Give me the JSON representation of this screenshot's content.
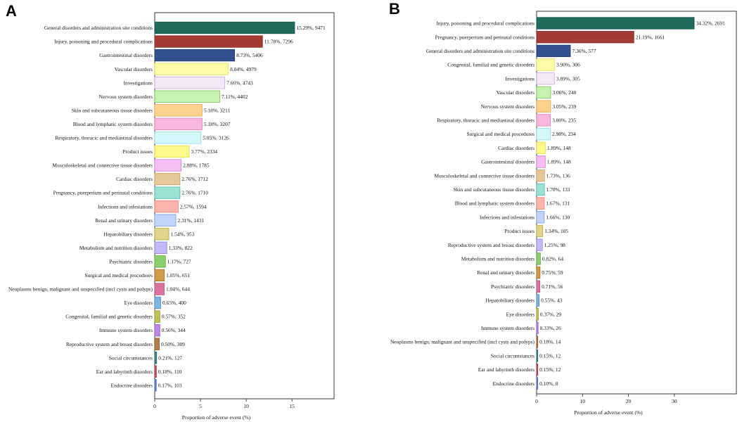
{
  "chart_data": [
    {
      "panel": "A",
      "type": "bar",
      "orientation": "horizontal",
      "xlabel": "Proportion of adverse event (%)",
      "xticks": [
        "0",
        "5",
        "10",
        "15"
      ],
      "xlim": [
        0,
        19.6
      ],
      "categories": [
        "General disorders and administration site conditions",
        "Injury, poisoning and procedural complications",
        "Gastrointestinal disorders",
        "Vascular disorders",
        "Investigations",
        "Nervous system disorders",
        "Skin and subcutaneous tissue disorders",
        "Blood and lymphatic system disorders",
        "Respiratory, thoracic and mediastinal disorders",
        "Product issues",
        "Musculoskeletal and connective tissue disorders",
        "Cardiac disorders",
        "Pregnancy, puerperium and perinatal conditions",
        "Infections and infestations",
        "Renal and urinary disorders",
        "Hepatobiliary disorders",
        "Metabolism and nutrition disorders",
        "Psychiatric disorders",
        "Surgical and medical procedures",
        "Neoplasms benign, malignant and unspecified (incl cysts and polyps)",
        "Eye disorders",
        "Congenital, familial and genetic disorders",
        "Immune system disorders",
        "Reproductive system and breast disorders",
        "Social circumstances",
        "Ear and labyrinth disorders",
        "Endocrine disorders"
      ],
      "values": [
        15.29,
        11.78,
        8.73,
        8.04,
        7.66,
        7.11,
        5.18,
        5.18,
        5.05,
        3.77,
        2.88,
        2.76,
        2.76,
        2.57,
        2.31,
        1.54,
        1.33,
        1.17,
        1.05,
        1.04,
        0.65,
        0.57,
        0.56,
        0.5,
        0.21,
        0.18,
        0.17
      ],
      "labels": [
        "15.29%, 9471",
        "11.78%, 7296",
        "8.73%, 5406",
        "8.04%, 4979",
        "7.66%, 4743",
        "7.11%, 4402",
        "5.18%, 3211",
        "5.18%, 3207",
        "5.05%, 3126",
        "3.77%, 2334",
        "2.88%, 1785",
        "2.76%, 1712",
        "2.76%, 1710",
        "2.57%, 1594",
        "2.31%, 1431",
        "1.54%, 953",
        "1.33%, 822",
        "1.17%, 727",
        "1.05%, 651",
        "1.04%, 644",
        "0.65%, 400",
        "0.57%, 352",
        "0.56%, 344",
        "0.50%, 309",
        "0.21%, 127",
        "0.18%, 110",
        "0.17%, 103"
      ],
      "colors": [
        "#1f6b5e",
        "#a33b33",
        "#33508f",
        "#fdfaa8",
        "#f5e8f8",
        "#c6f3ad",
        "#fdd28f",
        "#f8b7de",
        "#d4f9fb",
        "#fdf88a",
        "#f6bef5",
        "#e6c79a",
        "#9be2d5",
        "#fbb5ab",
        "#c3d4fb",
        "#e0d58a",
        "#c3baf5",
        "#8ccf6d",
        "#d39a4a",
        "#d9759c",
        "#7fb6e3",
        "#c0bf59",
        "#bb8ae3",
        "#b07d47",
        "#3f8a87",
        "#c7545a",
        "#6b83d4"
      ],
      "edge_colors": [
        "#16524a",
        "#7e2c26",
        "#23396b",
        "#e8df54",
        "#c9a9d9",
        "#7bc25a",
        "#e7a544",
        "#e080b5",
        "#8fd8e2",
        "#e7dc3f",
        "#d07fd0",
        "#c99d63",
        "#54b7a6",
        "#e47d6e",
        "#7f9be0",
        "#b8a83f",
        "#8f82d8",
        "#5aa43e",
        "#a36f24",
        "#b34c78",
        "#4a86bf",
        "#999827",
        "#8d58bf",
        "#82552a",
        "#2a6462",
        "#9a3238",
        "#4a5fb0"
      ]
    },
    {
      "panel": "B",
      "type": "bar",
      "orientation": "horizontal",
      "xlabel": "Proportion of adverse event (%)",
      "xticks": [
        "0",
        "10",
        "20",
        "30"
      ],
      "xlim": [
        0,
        43.5
      ],
      "categories": [
        "Injury, poisoning and procedural complications",
        "Pregnancy, puerperium and perinatal conditions",
        "General disorders and administration site conditions",
        "Congenital, familial and genetic disorders",
        "Investigations",
        "Vascular disorders",
        "Nervous system disorders",
        "Respiratory, thoracic and mediastinal disorders",
        "Surgical and medical procedures",
        "Cardiac disorders",
        "Gastrointestinal disorders",
        "Musculoskeletal and connective tissue disorders",
        "Skin and subcutaneous tissue disorders",
        "Blood and lymphatic system disorders",
        "Infections and infestations",
        "Product issues",
        "Reproductive system and breast disorders",
        "Metabolism and nutrition disorders",
        "Renal and urinary disorders",
        "Psychiatric disorders",
        "Hepatobiliary disorders",
        "Eye disorders",
        "Immune system disorders",
        "Neoplasms benign, malignant and unspecified (incl cysts and polyps)",
        "Social circumstances",
        "Ear and labyrinth disorders",
        "Endocrine disorders"
      ],
      "values": [
        34.32,
        21.19,
        7.36,
        3.9,
        3.89,
        3.06,
        3.05,
        3.0,
        2.98,
        1.89,
        1.89,
        1.73,
        1.7,
        1.67,
        1.66,
        1.34,
        1.25,
        0.82,
        0.75,
        0.71,
        0.55,
        0.37,
        0.33,
        0.18,
        0.15,
        0.15,
        0.1
      ],
      "labels": [
        "34.32%, 2691",
        "21.19%, 1661",
        "7.36%, 577",
        "3.90%, 306",
        "3.89%, 305",
        "3.06%, 240",
        "3.05%, 239",
        "3.00%, 235",
        "2.98%, 234",
        "1.89%, 148",
        "1.89%, 148",
        "1.73%, 136",
        "1.70%, 133",
        "1.67%, 131",
        "1.66%, 130",
        "1.34%, 105",
        "1.25%, 98",
        "0.82%, 64",
        "0.75%, 59",
        "0.71%, 56",
        "0.55%, 43",
        "0.37%, 29",
        "0.33%, 26",
        "0.18%, 14",
        "0.15%, 12",
        "0.15%, 12",
        "0.10%, 8"
      ],
      "colors": [
        "#1f6b5e",
        "#a33b33",
        "#33508f",
        "#fdfaa8",
        "#f5e8f8",
        "#c6f3ad",
        "#fdd28f",
        "#f8b7de",
        "#d4f9fb",
        "#fdf88a",
        "#f6bef5",
        "#e6c79a",
        "#9be2d5",
        "#fbb5ab",
        "#c3d4fb",
        "#e0d58a",
        "#c3baf5",
        "#8ccf6d",
        "#d39a4a",
        "#d9759c",
        "#7fb6e3",
        "#c0bf59",
        "#bb8ae3",
        "#b07d47",
        "#3f8a87",
        "#c7545a",
        "#6b83d4"
      ],
      "edge_colors": [
        "#16524a",
        "#7e2c26",
        "#23396b",
        "#e8df54",
        "#c9a9d9",
        "#7bc25a",
        "#e7a544",
        "#e080b5",
        "#8fd8e2",
        "#e7dc3f",
        "#d07fd0",
        "#c99d63",
        "#54b7a6",
        "#e47d6e",
        "#7f9be0",
        "#b8a83f",
        "#8f82d8",
        "#5aa43e",
        "#a36f24",
        "#b34c78",
        "#4a86bf",
        "#999827",
        "#8d58bf",
        "#82552a",
        "#2a6462",
        "#9a3238",
        "#4a5fb0"
      ]
    }
  ]
}
